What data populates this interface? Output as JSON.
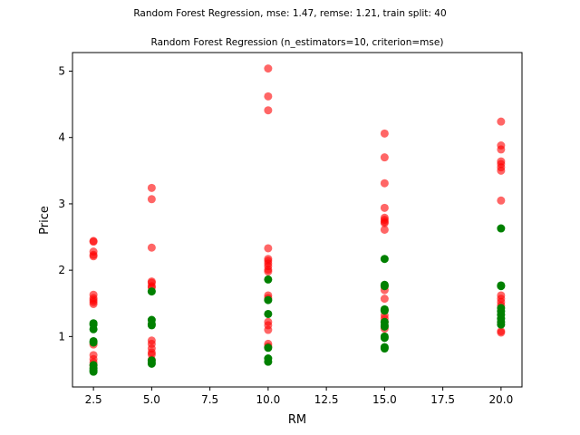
{
  "chart_data": {
    "type": "scatter",
    "suptitle": "Random Forest Regression, mse: 1.47, remse: 1.21, train split: 40",
    "title": "Random Forest Regression (n_estimators=10, criterion=mse)",
    "xlabel": "RM",
    "ylabel": "Price",
    "xlim": [
      1.6,
      20.9
    ],
    "ylim": [
      0.24,
      5.28
    ],
    "xticks": [
      2.5,
      5.0,
      7.5,
      10.0,
      12.5,
      15.0,
      17.5,
      20.0
    ],
    "xtick_labels": [
      "2.5",
      "5.0",
      "7.5",
      "10.0",
      "12.5",
      "15.0",
      "17.5",
      "20.0"
    ],
    "yticks": [
      1,
      2,
      3,
      4,
      5
    ],
    "ytick_labels": [
      "1",
      "2",
      "3",
      "4",
      "5"
    ],
    "grid": false,
    "series": [
      {
        "color": "#ff0000",
        "opacity": 0.6,
        "points": [
          [
            2.5,
            2.44
          ],
          [
            2.5,
            2.43
          ],
          [
            2.5,
            2.28
          ],
          [
            2.5,
            2.23
          ],
          [
            2.5,
            2.21
          ],
          [
            2.5,
            1.63
          ],
          [
            2.5,
            1.58
          ],
          [
            2.5,
            1.55
          ],
          [
            2.5,
            1.52
          ],
          [
            2.5,
            1.49
          ],
          [
            2.5,
            0.88
          ],
          [
            2.5,
            0.72
          ],
          [
            2.5,
            0.66
          ],
          [
            2.5,
            0.61
          ],
          [
            2.5,
            0.56
          ],
          [
            5.0,
            3.24
          ],
          [
            5.0,
            3.07
          ],
          [
            5.0,
            2.34
          ],
          [
            5.0,
            1.83
          ],
          [
            5.0,
            1.81
          ],
          [
            5.0,
            1.76
          ],
          [
            5.0,
            1.74
          ],
          [
            5.0,
            0.94
          ],
          [
            5.0,
            0.89
          ],
          [
            5.0,
            0.82
          ],
          [
            5.0,
            0.76
          ],
          [
            5.0,
            0.73
          ],
          [
            5.0,
            0.65
          ],
          [
            10.0,
            5.04
          ],
          [
            10.0,
            4.62
          ],
          [
            10.0,
            4.41
          ],
          [
            10.0,
            2.33
          ],
          [
            10.0,
            2.17
          ],
          [
            10.0,
            2.14
          ],
          [
            10.0,
            2.1
          ],
          [
            10.0,
            2.06
          ],
          [
            10.0,
            2.01
          ],
          [
            10.0,
            1.98
          ],
          [
            10.0,
            1.62
          ],
          [
            10.0,
            1.58
          ],
          [
            10.0,
            1.22
          ],
          [
            10.0,
            1.17
          ],
          [
            10.0,
            1.1
          ],
          [
            10.0,
            0.89
          ],
          [
            10.0,
            0.85
          ],
          [
            15.0,
            4.06
          ],
          [
            15.0,
            3.7
          ],
          [
            15.0,
            3.31
          ],
          [
            15.0,
            2.94
          ],
          [
            15.0,
            2.79
          ],
          [
            15.0,
            2.76
          ],
          [
            15.0,
            2.73
          ],
          [
            15.0,
            2.71
          ],
          [
            15.0,
            2.61
          ],
          [
            15.0,
            1.76
          ],
          [
            15.0,
            1.7
          ],
          [
            15.0,
            1.57
          ],
          [
            15.0,
            1.4
          ],
          [
            15.0,
            1.32
          ],
          [
            15.0,
            1.27
          ],
          [
            15.0,
            1.22
          ],
          [
            15.0,
            1.12
          ],
          [
            20.0,
            4.24
          ],
          [
            20.0,
            3.88
          ],
          [
            20.0,
            3.82
          ],
          [
            20.0,
            3.64
          ],
          [
            20.0,
            3.6
          ],
          [
            20.0,
            3.55
          ],
          [
            20.0,
            3.5
          ],
          [
            20.0,
            3.05
          ],
          [
            20.0,
            1.62
          ],
          [
            20.0,
            1.57
          ],
          [
            20.0,
            1.52
          ],
          [
            20.0,
            1.47
          ],
          [
            20.0,
            1.08
          ],
          [
            20.0,
            1.06
          ]
        ]
      },
      {
        "color": "#008000",
        "opacity": 1.0,
        "points": [
          [
            2.5,
            1.2
          ],
          [
            2.5,
            1.18
          ],
          [
            2.5,
            1.11
          ],
          [
            2.5,
            0.93
          ],
          [
            2.5,
            0.91
          ],
          [
            2.5,
            0.57
          ],
          [
            2.5,
            0.52
          ],
          [
            2.5,
            0.49
          ],
          [
            2.5,
            0.47
          ],
          [
            5.0,
            1.68
          ],
          [
            5.0,
            1.25
          ],
          [
            5.0,
            1.19
          ],
          [
            5.0,
            1.17
          ],
          [
            5.0,
            0.64
          ],
          [
            5.0,
            0.61
          ],
          [
            5.0,
            0.59
          ],
          [
            10.0,
            1.86
          ],
          [
            10.0,
            1.55
          ],
          [
            10.0,
            1.34
          ],
          [
            10.0,
            0.83
          ],
          [
            10.0,
            0.67
          ],
          [
            10.0,
            0.62
          ],
          [
            15.0,
            2.17
          ],
          [
            15.0,
            1.78
          ],
          [
            15.0,
            1.76
          ],
          [
            15.0,
            1.41
          ],
          [
            15.0,
            1.39
          ],
          [
            15.0,
            1.22
          ],
          [
            15.0,
            1.17
          ],
          [
            15.0,
            1.15
          ],
          [
            15.0,
            1.0
          ],
          [
            15.0,
            0.98
          ],
          [
            15.0,
            0.84
          ],
          [
            15.0,
            0.82
          ],
          [
            20.0,
            2.63
          ],
          [
            20.0,
            1.77
          ],
          [
            20.0,
            1.76
          ],
          [
            20.0,
            1.43
          ],
          [
            20.0,
            1.38
          ],
          [
            20.0,
            1.33
          ],
          [
            20.0,
            1.27
          ],
          [
            20.0,
            1.22
          ],
          [
            20.0,
            1.18
          ]
        ]
      }
    ]
  }
}
